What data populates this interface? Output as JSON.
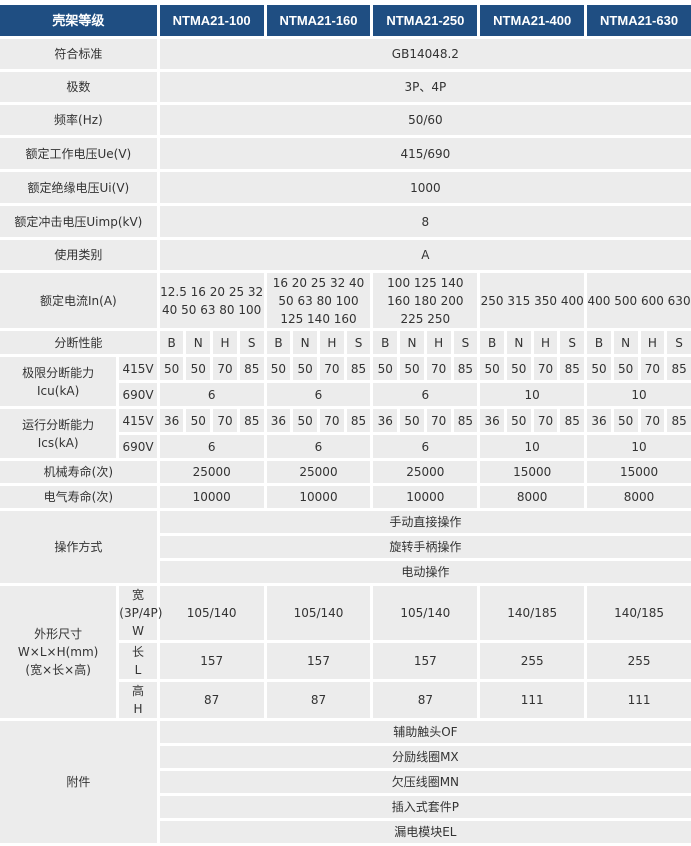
{
  "colors": {
    "header_bg": "#1f4e82",
    "cell_bg": "#ececec",
    "text": "#333333"
  },
  "header": {
    "label": "壳架等级",
    "models": [
      "NTMA21-100",
      "NTMA21-160",
      "NTMA21-250",
      "NTMA21-400",
      "NTMA21-630"
    ]
  },
  "common_rows": [
    {
      "label": "符合标准",
      "value": "GB14048.2"
    },
    {
      "label": "极数",
      "value": "3P、4P"
    },
    {
      "label": "频率(Hz)",
      "value": "50/60"
    },
    {
      "label": "额定工作电压Ue(V)",
      "value": "415/690"
    },
    {
      "label": "额定绝缘电压Ui(V)",
      "value": "1000"
    },
    {
      "label": "额定冲击电压Uimp(kV)",
      "value": "8"
    },
    {
      "label": "使用类别",
      "value": "A"
    }
  ],
  "rated_current": {
    "label": "额定电流In(A)",
    "values": [
      [
        "12.5 16 20 25 32",
        "40 50 63 80 100"
      ],
      [
        "16 20 25 32 40",
        "50 63 80 100",
        "125 140 160"
      ],
      [
        "100 125 140",
        "160 180 200",
        "225 250"
      ],
      [
        "250 315 350 400"
      ],
      [
        "400 500 600 630"
      ]
    ]
  },
  "breaking": {
    "label": "分断性能",
    "grades": [
      "B",
      "N",
      "H",
      "S"
    ]
  },
  "icu": {
    "label": [
      "极限分断能力",
      "Icu(kA)"
    ],
    "v415": "415V",
    "v690": "690V",
    "values415": [
      [
        "50",
        "50",
        "70",
        "85"
      ],
      [
        "50",
        "50",
        "70",
        "85"
      ],
      [
        "50",
        "50",
        "70",
        "85"
      ],
      [
        "50",
        "50",
        "70",
        "85"
      ],
      [
        "50",
        "50",
        "70",
        "85"
      ]
    ],
    "values690": [
      "6",
      "6",
      "6",
      "10",
      "10"
    ]
  },
  "ics": {
    "label": [
      "运行分断能力",
      "Ics(kA)"
    ],
    "v415": "415V",
    "v690": "690V",
    "values415": [
      [
        "36",
        "50",
        "70",
        "85"
      ],
      [
        "36",
        "50",
        "70",
        "85"
      ],
      [
        "36",
        "50",
        "70",
        "85"
      ],
      [
        "36",
        "50",
        "70",
        "85"
      ],
      [
        "36",
        "50",
        "70",
        "85"
      ]
    ],
    "values690": [
      "6",
      "6",
      "6",
      "10",
      "10"
    ]
  },
  "mechanical_life": {
    "label": "机械寿命(次)",
    "values": [
      "25000",
      "25000",
      "25000",
      "15000",
      "15000"
    ]
  },
  "electrical_life": {
    "label": "电气寿命(次)",
    "values": [
      "10000",
      "10000",
      "10000",
      "8000",
      "8000"
    ]
  },
  "operation": {
    "label": "操作方式",
    "items": [
      "手动直接操作",
      "旋转手柄操作",
      "电动操作"
    ]
  },
  "dimensions": {
    "label": [
      "外形尺寸",
      "W×L×H(mm)",
      "(宽×长×高)"
    ],
    "rows": [
      {
        "sub": [
          "宽(3P/4P)",
          "W"
        ],
        "values": [
          "105/140",
          "105/140",
          "105/140",
          "140/185",
          "140/185"
        ]
      },
      {
        "sub": [
          "长",
          "L"
        ],
        "values": [
          "157",
          "157",
          "157",
          "255",
          "255"
        ]
      },
      {
        "sub": [
          "高",
          "H"
        ],
        "values": [
          "87",
          "87",
          "87",
          "111",
          "111"
        ]
      }
    ]
  },
  "accessories": {
    "label": "附件",
    "items": [
      "辅助触头OF",
      "分励线圈MX",
      "欠压线圈MN",
      "插入式套件P",
      "漏电模块EL"
    ]
  }
}
